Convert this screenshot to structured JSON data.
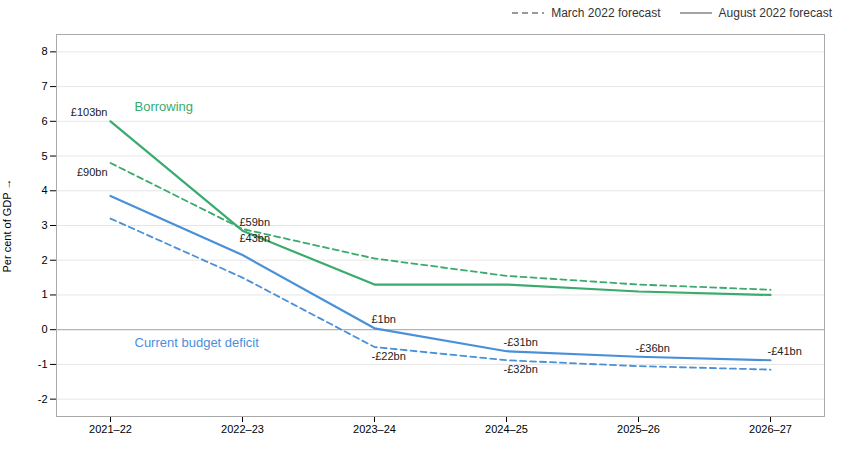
{
  "chart_data": {
    "type": "line",
    "categories": [
      "2021–22",
      "2022–23",
      "2023–24",
      "2024–25",
      "2025–26",
      "2026–27"
    ],
    "series": [
      {
        "color": "#3aaa6e",
        "line_style": "solid",
        "values": [
          6.0,
          2.85,
          1.3,
          1.3,
          1.1,
          1.0
        ]
      },
      {
        "color": "#3aaa6e",
        "line_style": "dashed",
        "values": [
          4.8,
          2.9,
          2.05,
          1.55,
          1.3,
          1.15
        ]
      },
      {
        "color": "#4a90d9",
        "line_style": "solid",
        "values": [
          3.85,
          2.15,
          0.04,
          -0.62,
          -0.78,
          -0.88
        ]
      },
      {
        "color": "#4a90d9",
        "line_style": "dashed",
        "values": [
          3.2,
          1.5,
          -0.5,
          -0.88,
          -1.05,
          -1.15
        ]
      }
    ],
    "ylabel": "Per cent of GDP",
    "ylim": [
      -2.5,
      8.5
    ],
    "yticks": [
      -2,
      -1,
      0,
      1,
      2,
      3,
      4,
      5,
      6,
      7,
      8
    ],
    "grid": true,
    "legend": "upper right",
    "legend_entries": [
      {
        "label": "March 2022 forecast",
        "color": "#999999",
        "line_style": "dashed"
      },
      {
        "label": "August 2022 forecast",
        "color": "#999999",
        "line_style": "solid"
      }
    ],
    "annotations": [
      {
        "text": "£103bn",
        "x": "2021–22",
        "y": 6.0
      },
      {
        "text": "£90bn",
        "x": "2021–22",
        "y": 4.8
      },
      {
        "text": "£59bn",
        "x": "2022–23",
        "y": 2.85
      },
      {
        "text": "£43bn",
        "x": "2022–23",
        "y": 2.9
      },
      {
        "text": "£1bn",
        "x": "2023–24",
        "y": 0.04
      },
      {
        "text": "-£22bn",
        "x": "2023–24",
        "y": -0.5
      },
      {
        "text": "-£31bn",
        "x": "2024–25",
        "y": -0.62
      },
      {
        "text": "-£36bn",
        "x": "2025–26",
        "y": -0.78
      },
      {
        "text": "-£41bn",
        "x": "2026–27",
        "y": -0.88
      },
      {
        "text": "-£32bn",
        "x": "2024–25",
        "y": -0.88
      },
      {
        "text": "Borrowing",
        "color": "#3aaa6e"
      },
      {
        "text": "Current budget deficit",
        "color": "#4a90d9"
      }
    ]
  }
}
